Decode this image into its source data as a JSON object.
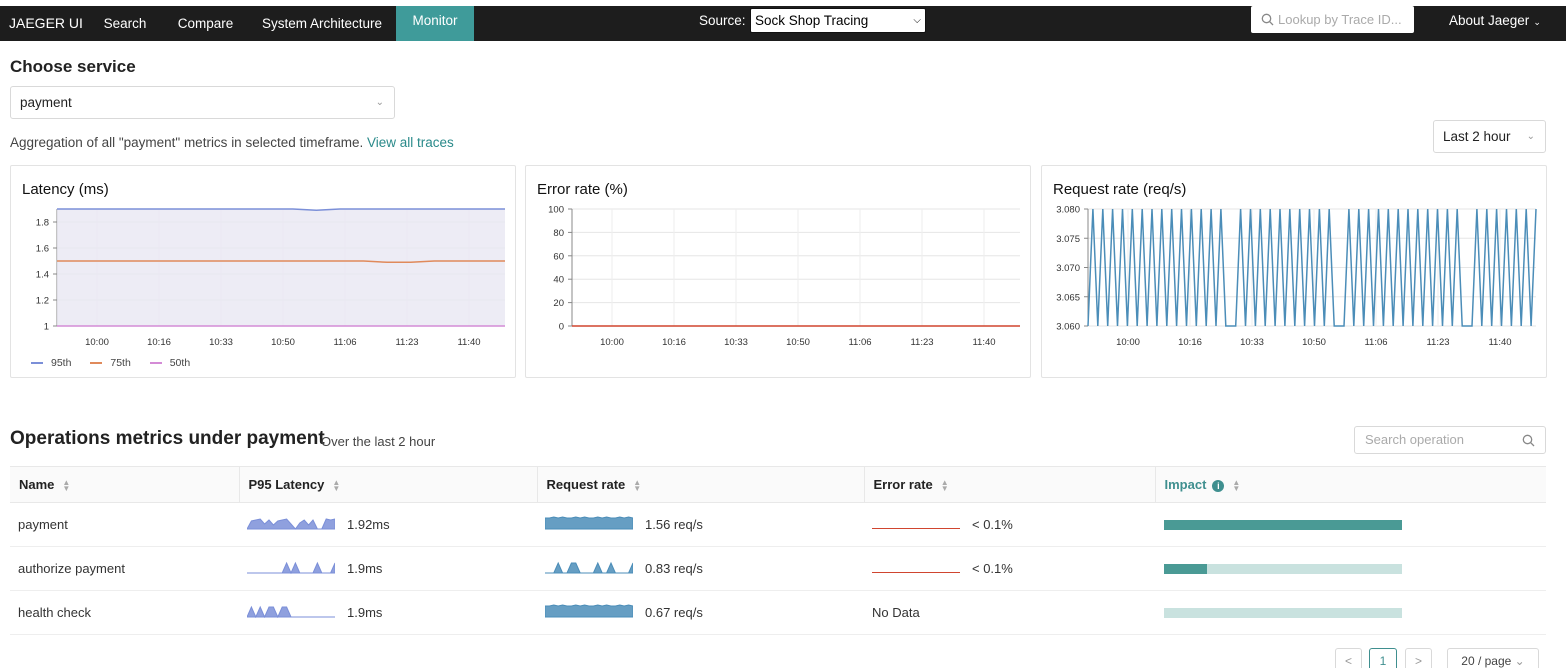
{
  "nav": {
    "brand": "JAEGER UI",
    "items": [
      "Search",
      "Compare",
      "System Architecture",
      "Monitor"
    ],
    "source_label": "Source:",
    "source_value": "Sock Shop Tracing",
    "lookup_placeholder": "Lookup by Trace ID...",
    "about": "About Jaeger"
  },
  "service": {
    "heading": "Choose service",
    "selected": "payment",
    "aggregation_text": "Aggregation of all \"payment\" metrics in selected timeframe.",
    "view_traces_link": "View all traces",
    "timeframe": "Last 2 hour"
  },
  "chart_data": [
    {
      "type": "line",
      "title": "Latency (ms)",
      "x_ticks": [
        "10:00",
        "10:16",
        "10:33",
        "10:50",
        "11:06",
        "11:23",
        "11:40"
      ],
      "y_ticks": [
        "1",
        "1.2",
        "1.4",
        "1.6",
        "1.8"
      ],
      "ylim": [
        1,
        1.9
      ],
      "series": [
        {
          "name": "95th",
          "color": "#7b8fd8",
          "values": [
            1.9,
            1.9,
            1.9,
            1.9,
            1.9,
            1.9,
            1.9,
            1.9,
            1.9,
            1.9,
            1.9,
            1.89,
            1.9,
            1.9,
            1.9,
            1.9,
            1.9,
            1.9,
            1.9,
            1.9
          ]
        },
        {
          "name": "75th",
          "color": "#e08a5b",
          "values": [
            1.5,
            1.5,
            1.5,
            1.5,
            1.5,
            1.5,
            1.5,
            1.5,
            1.5,
            1.5,
            1.5,
            1.5,
            1.5,
            1.5,
            1.49,
            1.49,
            1.5,
            1.5,
            1.5,
            1.5
          ]
        },
        {
          "name": "50th",
          "color": "#d48bd6",
          "values": [
            1,
            1,
            1,
            1,
            1,
            1,
            1,
            1,
            1,
            1,
            1,
            1,
            1,
            1,
            1,
            1,
            1,
            1,
            1,
            1
          ]
        }
      ],
      "legend": "bottom-left",
      "grid": true
    },
    {
      "type": "line",
      "title": "Error rate (%)",
      "x_ticks": [
        "10:00",
        "10:16",
        "10:33",
        "10:50",
        "11:06",
        "11:23",
        "11:40"
      ],
      "y_ticks": [
        "0",
        "20",
        "40",
        "60",
        "80",
        "100"
      ],
      "ylim": [
        0,
        100
      ],
      "series": [
        {
          "color": "#d0452f",
          "values": [
            0,
            0,
            0,
            0,
            0,
            0,
            0,
            0,
            0,
            0,
            0,
            0,
            0,
            0,
            0,
            0,
            0,
            0,
            0,
            0
          ]
        }
      ],
      "grid": true
    },
    {
      "type": "line",
      "title": "Request rate (req/s)",
      "x_ticks": [
        "10:00",
        "10:16",
        "10:33",
        "10:50",
        "11:06",
        "11:23",
        "11:40"
      ],
      "y_ticks": [
        "3.060",
        "3.065",
        "3.070",
        "3.075",
        "3.080"
      ],
      "ylim": [
        3.06,
        3.08
      ],
      "series": [
        {
          "color": "#4b8db8",
          "values": [
            3.06,
            3.08,
            3.06,
            3.08,
            3.06,
            3.08,
            3.06,
            3.08,
            3.06,
            3.08,
            3.06,
            3.08,
            3.06,
            3.08,
            3.06,
            3.08,
            3.06,
            3.08,
            3.06,
            3.08,
            3.06,
            3.08,
            3.06,
            3.08,
            3.06,
            3.08,
            3.06,
            3.08,
            3.06,
            3.06,
            3.06,
            3.08,
            3.06,
            3.08,
            3.06,
            3.08,
            3.06,
            3.08,
            3.06,
            3.08,
            3.06,
            3.08,
            3.06,
            3.08,
            3.06,
            3.08,
            3.06,
            3.08,
            3.06,
            3.08,
            3.06,
            3.06,
            3.06,
            3.08,
            3.06,
            3.08,
            3.06,
            3.08,
            3.06,
            3.08,
            3.06,
            3.08,
            3.06,
            3.08,
            3.06,
            3.08,
            3.06,
            3.08,
            3.06,
            3.08,
            3.06,
            3.08,
            3.06,
            3.08,
            3.06,
            3.08,
            3.06,
            3.06,
            3.06,
            3.08,
            3.06,
            3.08,
            3.06,
            3.08,
            3.06,
            3.08,
            3.06,
            3.08,
            3.06,
            3.08,
            3.06,
            3.08
          ]
        }
      ],
      "grid": true
    }
  ],
  "operations": {
    "heading": "Operations metrics under payment",
    "subtitle": "Over the last 2 hour",
    "search_placeholder": "Search operation",
    "columns": [
      "Name",
      "P95 Latency",
      "Request rate",
      "Error rate",
      "Impact"
    ],
    "rows": [
      {
        "name": "payment",
        "latency": "1.92ms",
        "request_rate": "1.56 req/s",
        "error_rate": "< 0.1%",
        "impact": 1.0,
        "has_error": true
      },
      {
        "name": "authorize payment",
        "latency": "1.9ms",
        "request_rate": "0.83 req/s",
        "error_rate": "< 0.1%",
        "impact": 0.18,
        "has_error": true
      },
      {
        "name": "health check",
        "latency": "1.9ms",
        "request_rate": "0.67 req/s",
        "error_rate": "No Data",
        "impact": 0.0,
        "has_error": false
      }
    ]
  },
  "pagination": {
    "prev": "<",
    "page": "1",
    "next": ">",
    "page_size": "20 / page"
  },
  "colors": {
    "accent": "#3f9b9a",
    "latency_spark": "#7b8fd8",
    "request_spark": "#4b8db8",
    "error_spark": "#d0452f"
  }
}
